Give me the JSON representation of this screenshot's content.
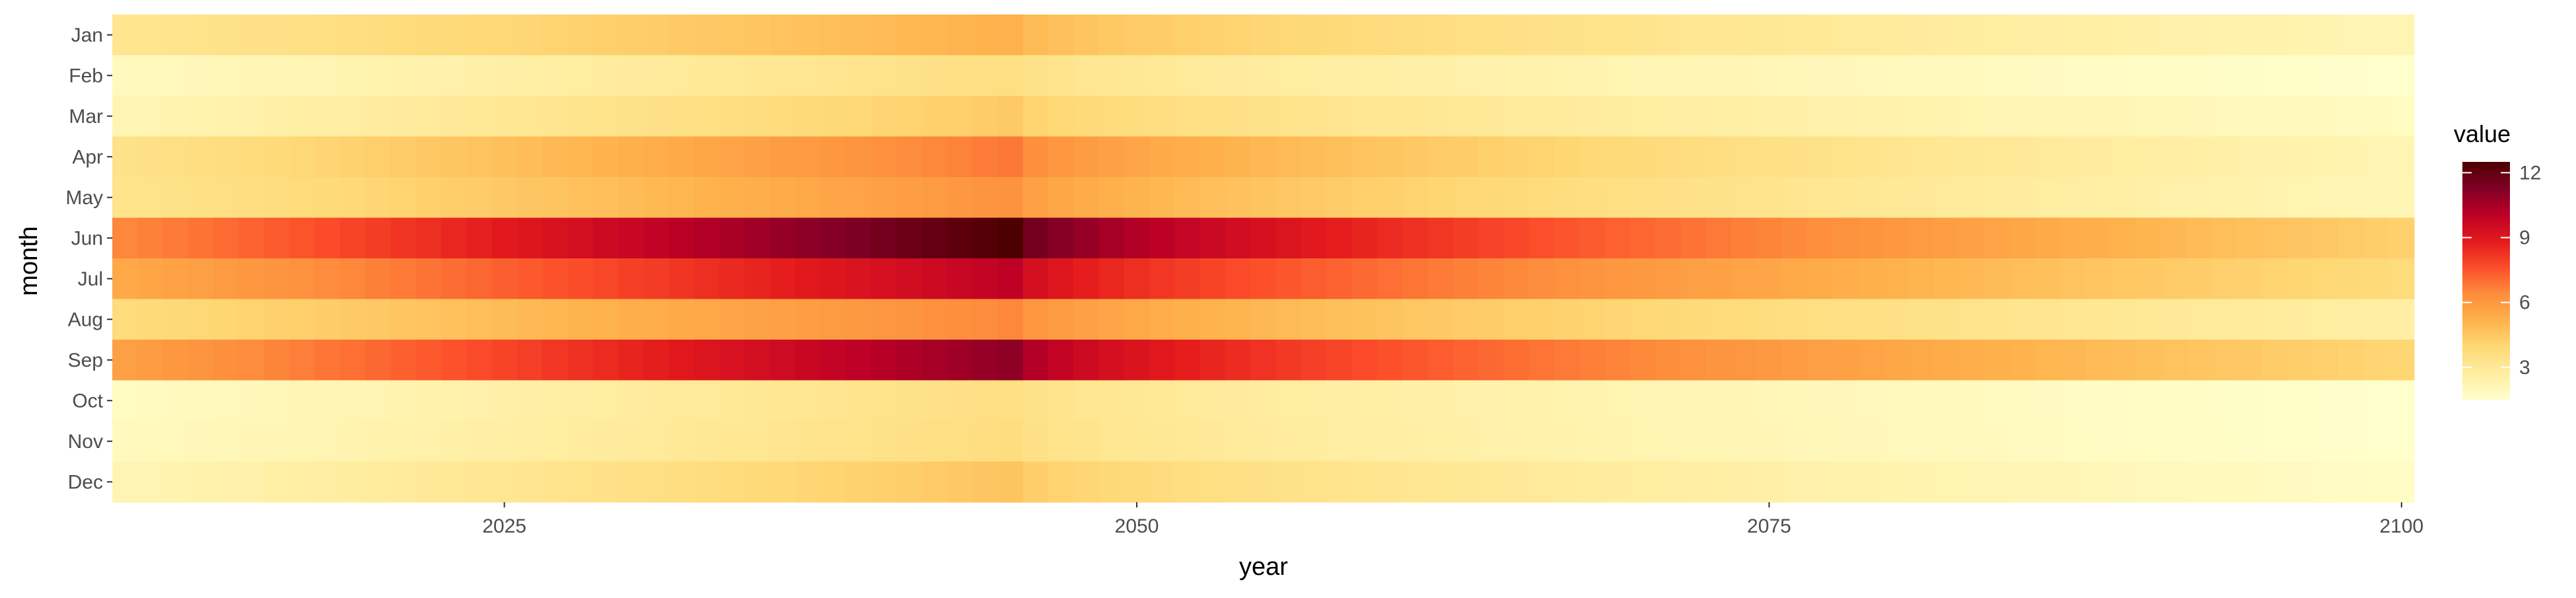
{
  "chart_data": {
    "type": "heatmap",
    "title": "",
    "xlabel": "year",
    "ylabel": "month",
    "x_start_year": 2010,
    "x_end_year": 2100,
    "xlim": [
      2009.5,
      2100.5
    ],
    "x_ticks": [
      2025,
      2050,
      2075,
      2100
    ],
    "months": [
      "Jan",
      "Feb",
      "Mar",
      "Apr",
      "May",
      "Jun",
      "Jul",
      "Aug",
      "Sep",
      "Oct",
      "Nov",
      "Dec"
    ],
    "legend": {
      "title": "value",
      "ticks": [
        3,
        6,
        9,
        12
      ],
      "min": 1.5,
      "max": 12.5,
      "colors": [
        "#ffffcc",
        "#ffeda0",
        "#fed976",
        "#feb24c",
        "#fd8d3c",
        "#fc4e2a",
        "#e31a1c",
        "#bd0026",
        "#800026",
        "#4d0000"
      ]
    },
    "month_profiles": [
      {
        "month": "Jan",
        "start": 3.2,
        "peak": 5.2,
        "end": 2.2
      },
      {
        "month": "Feb",
        "start": 1.9,
        "peak": 3.6,
        "end": 1.5
      },
      {
        "month": "Mar",
        "start": 2.2,
        "peak": 4.4,
        "end": 1.8
      },
      {
        "month": "Apr",
        "start": 3.4,
        "peak": 6.8,
        "end": 2.2
      },
      {
        "month": "May",
        "start": 3.3,
        "peak": 6.2,
        "end": 2.1
      },
      {
        "month": "Jun",
        "start": 6.5,
        "peak": 12.5,
        "end": 4.2
      },
      {
        "month": "Jul",
        "start": 5.5,
        "peak": 10.0,
        "end": 3.8
      },
      {
        "month": "Aug",
        "start": 3.8,
        "peak": 6.5,
        "end": 2.6
      },
      {
        "month": "Sep",
        "start": 5.8,
        "peak": 11.0,
        "end": 4.0
      },
      {
        "month": "Oct",
        "start": 1.8,
        "peak": 3.6,
        "end": 1.5
      },
      {
        "month": "Nov",
        "start": 1.9,
        "peak": 3.7,
        "end": 1.5
      },
      {
        "month": "Dec",
        "start": 2.2,
        "peak": 4.6,
        "end": 1.7
      }
    ],
    "peak_year": 2045,
    "grid": false,
    "legend_position": "right"
  }
}
